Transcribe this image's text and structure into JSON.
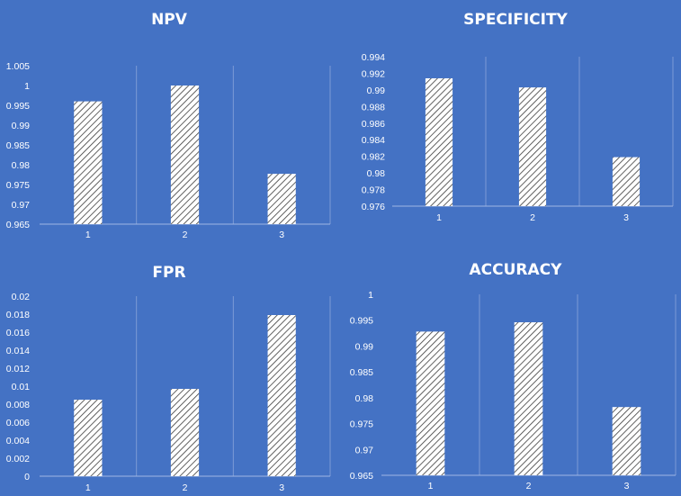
{
  "background": "#4472c4",
  "bar_fill": "hatched-white-diagonal",
  "chart_data": [
    {
      "type": "bar",
      "title": "NPV",
      "categories": [
        "1",
        "2",
        "3"
      ],
      "values": [
        0.996,
        1.0,
        0.9777
      ],
      "ylim": [
        0.965,
        1.005
      ],
      "yticks": [
        "1.005",
        "1",
        "0.995",
        "0.99",
        "0.985",
        "0.98",
        "0.975",
        "0.97",
        "0.965"
      ],
      "grid": "vertical-category-separators"
    },
    {
      "type": "bar",
      "title": "SPECIFICITY",
      "categories": [
        "1",
        "2",
        "3"
      ],
      "values": [
        0.9914,
        0.9903,
        0.9819
      ],
      "ylim": [
        0.976,
        0.994
      ],
      "yticks": [
        "0.994",
        "0.992",
        "0.99",
        "0.988",
        "0.986",
        "0.984",
        "0.982",
        "0.98",
        "0.978",
        "0.976"
      ],
      "grid": "vertical-category-separators"
    },
    {
      "type": "bar",
      "title": "FPR",
      "categories": [
        "1",
        "2",
        "3"
      ],
      "values": [
        0.0085,
        0.0097,
        0.0179
      ],
      "ylim": [
        0,
        0.02
      ],
      "yticks": [
        "0.02",
        "0.018",
        "0.016",
        "0.014",
        "0.012",
        "0.01",
        "0.008",
        "0.006",
        "0.004",
        "0.002",
        "0"
      ],
      "grid": "vertical-category-separators"
    },
    {
      "type": "bar",
      "title": "ACCURACY",
      "categories": [
        "1",
        "2",
        "3"
      ],
      "values": [
        0.9928,
        0.9946,
        0.9782
      ],
      "ylim": [
        0.965,
        1.0
      ],
      "yticks": [
        "1",
        "0.995",
        "0.99",
        "0.985",
        "0.98",
        "0.975",
        "0.97",
        "0.965"
      ],
      "grid": "vertical-category-separators"
    }
  ]
}
